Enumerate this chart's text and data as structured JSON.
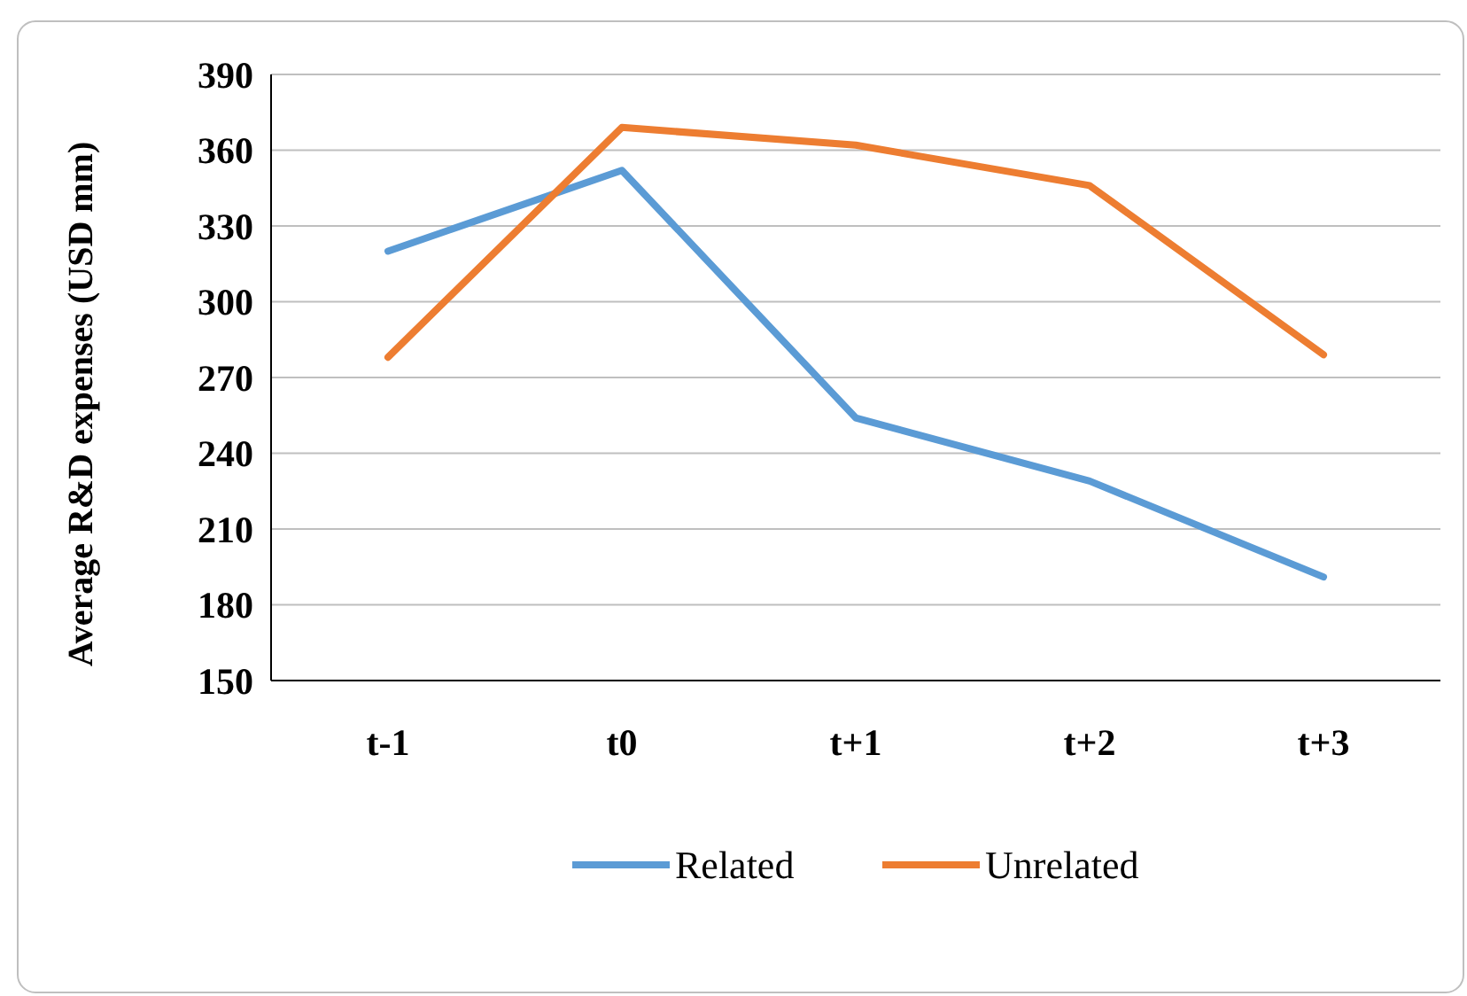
{
  "chart_data": {
    "type": "line",
    "ylabel": "Average R&D expenses (USD mm)",
    "categories": [
      "t-1",
      "t0",
      "t+1",
      "t+2",
      "t+3"
    ],
    "series": [
      {
        "name": "Related",
        "color": "#5b9bd5",
        "values": [
          320,
          352,
          254,
          229,
          191
        ]
      },
      {
        "name": "Unrelated",
        "color": "#ed7d31",
        "values": [
          278,
          369,
          362,
          346,
          279
        ]
      }
    ],
    "ylim": [
      150,
      390
    ],
    "yticks": [
      150,
      180,
      210,
      240,
      270,
      300,
      330,
      360,
      390
    ],
    "grid": "y",
    "legend": "bottom",
    "marker": "none",
    "line_style": "solid"
  }
}
